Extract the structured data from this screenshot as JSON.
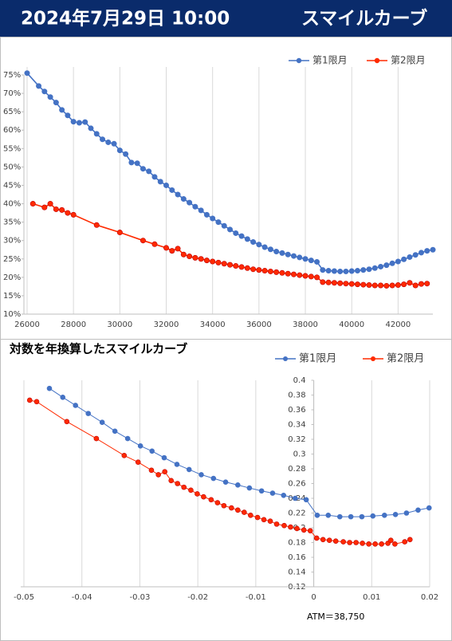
{
  "header": {
    "title": "2024年7月29日 10:00",
    "subtitle": "スマイルカーブ"
  },
  "chart_data": [
    {
      "type": "line",
      "xlim": [
        26000,
        43500
      ],
      "ylim": [
        10,
        75
      ],
      "xticks": [
        26000,
        28000,
        30000,
        32000,
        34000,
        36000,
        38000,
        40000,
        42000
      ],
      "yticks": [
        {
          "value": 10,
          "label": "10%"
        },
        {
          "value": 15,
          "label": "15%"
        },
        {
          "value": 20,
          "label": "20%"
        },
        {
          "value": 25,
          "label": "25%"
        },
        {
          "value": 30,
          "label": "30%"
        },
        {
          "value": 35,
          "label": "35%"
        },
        {
          "value": 40,
          "label": "40%"
        },
        {
          "value": 45,
          "label": "45%"
        },
        {
          "value": 50,
          "label": "50%"
        },
        {
          "value": 55,
          "label": "55%"
        },
        {
          "value": 60,
          "label": "60%"
        },
        {
          "value": 65,
          "label": "65%"
        },
        {
          "value": 70,
          "label": "70%"
        },
        {
          "value": 75,
          "label": "75%"
        }
      ],
      "grid": "x",
      "legend": "top-right",
      "series": [
        {
          "name": "第1限月",
          "color": "#4472c4",
          "x": [
            26000,
            26500,
            26750,
            27000,
            27250,
            27500,
            27750,
            28000,
            28250,
            28500,
            28750,
            29000,
            29250,
            29500,
            29750,
            30000,
            30250,
            30500,
            30750,
            31000,
            31250,
            31500,
            31750,
            32000,
            32250,
            32500,
            32750,
            33000,
            33250,
            33500,
            33750,
            34000,
            34250,
            34500,
            34750,
            35000,
            35250,
            35500,
            35750,
            36000,
            36250,
            36500,
            36750,
            37000,
            37250,
            37500,
            37750,
            38000,
            38250,
            38500,
            38750,
            39000,
            39250,
            39500,
            39750,
            40000,
            40250,
            40500,
            40750,
            41000,
            41250,
            41500,
            41750,
            42000,
            42250,
            42500,
            42750,
            43000,
            43250,
            43500
          ],
          "values": [
            75.5,
            72,
            70.5,
            69,
            67.5,
            65.5,
            64,
            62.3,
            62,
            62.2,
            60.5,
            59,
            57.5,
            56.7,
            56.3,
            54.5,
            53.5,
            51.2,
            51,
            49.5,
            48.8,
            47.3,
            46,
            45,
            43.7,
            42.5,
            41.3,
            40.3,
            39.2,
            38.2,
            37,
            36,
            35,
            34,
            33,
            32,
            31.2,
            30.4,
            29.6,
            28.9,
            28.2,
            27.6,
            27,
            26.6,
            26.2,
            25.8,
            25.4,
            25,
            24.6,
            24.2,
            22,
            21.8,
            21.7,
            21.6,
            21.6,
            21.7,
            21.8,
            22,
            22.2,
            22.5,
            22.9,
            23.3,
            23.8,
            24.3,
            24.9,
            25.5,
            26.1,
            26.7,
            27.2,
            27.5
          ]
        },
        {
          "name": "第2限月",
          "color": "#ff2a00",
          "x": [
            26250,
            26750,
            27000,
            27250,
            27500,
            27750,
            28000,
            29000,
            30000,
            31000,
            31500,
            32000,
            32250,
            32500,
            32750,
            33000,
            33250,
            33500,
            33750,
            34000,
            34250,
            34500,
            34750,
            35000,
            35250,
            35500,
            35750,
            36000,
            36250,
            36500,
            36750,
            37000,
            37250,
            37500,
            37750,
            38000,
            38250,
            38500,
            38750,
            39000,
            39250,
            39500,
            39750,
            40000,
            40250,
            40500,
            40750,
            41000,
            41250,
            41500,
            41750,
            42000,
            42250,
            42500,
            42750,
            43000,
            43250
          ],
          "values": [
            40,
            39,
            40,
            38.5,
            38.3,
            37.5,
            37,
            34.2,
            32.2,
            30,
            29,
            28,
            27.2,
            27.8,
            26.2,
            25.7,
            25.3,
            25,
            24.6,
            24.3,
            24,
            23.7,
            23.4,
            23.1,
            22.8,
            22.5,
            22.2,
            22,
            21.8,
            21.6,
            21.4,
            21.2,
            21,
            20.8,
            20.6,
            20.4,
            20.2,
            20,
            18.7,
            18.6,
            18.5,
            18.4,
            18.3,
            18.2,
            18.1,
            18,
            17.9,
            17.8,
            17.8,
            17.7,
            17.8,
            17.9,
            18.1,
            18.5,
            17.8,
            18.2,
            18.3
          ]
        }
      ]
    },
    {
      "type": "line",
      "title": "対数を年換算したスマイルカーブ",
      "annotation": "ATM＝38,750",
      "xlim": [
        -0.05,
        0.02
      ],
      "ylim": [
        0.12,
        0.4
      ],
      "xticks": [
        -0.05,
        -0.04,
        -0.03,
        -0.02,
        -0.01,
        0,
        0.01,
        0.02
      ],
      "yticks": [
        0.12,
        0.14,
        0.16,
        0.18,
        0.2,
        0.22,
        0.24,
        0.26,
        0.28,
        0.3,
        0.32,
        0.34,
        0.36,
        0.38,
        0.4
      ],
      "grid": "x",
      "legend": "top-right",
      "series": [
        {
          "name": "第1限月",
          "color": "#4472c4",
          "x": [
            -0.0456,
            -0.0433,
            -0.0411,
            -0.0389,
            -0.0365,
            -0.0343,
            -0.0321,
            -0.0299,
            -0.0279,
            -0.0258,
            -0.0236,
            -0.0215,
            -0.0194,
            -0.0173,
            -0.0152,
            -0.0131,
            -0.0111,
            -0.009,
            -0.0071,
            -0.0052,
            -0.0032,
            -0.0013,
            0.0006,
            0.0025,
            0.0045,
            0.0064,
            0.0083,
            0.0102,
            0.0122,
            0.0141,
            0.016,
            0.018,
            0.0199
          ],
          "values": [
            0.389,
            0.377,
            0.366,
            0.355,
            0.343,
            0.331,
            0.321,
            0.311,
            0.304,
            0.295,
            0.286,
            0.279,
            0.272,
            0.267,
            0.262,
            0.258,
            0.254,
            0.25,
            0.247,
            0.244,
            0.24,
            0.238,
            0.217,
            0.217,
            0.215,
            0.215,
            0.215,
            0.216,
            0.217,
            0.218,
            0.22,
            0.224,
            0.227
          ]
        },
        {
          "name": "第2限月",
          "color": "#ff2a00",
          "x": [
            -0.049,
            -0.0478,
            -0.0426,
            -0.0375,
            -0.0327,
            -0.0303,
            -0.028,
            -0.0268,
            -0.0257,
            -0.0246,
            -0.0235,
            -0.0224,
            -0.0212,
            -0.0201,
            -0.019,
            -0.0177,
            -0.0166,
            -0.0155,
            -0.0142,
            -0.0131,
            -0.012,
            -0.0109,
            -0.0097,
            -0.0086,
            -0.0075,
            -0.0064,
            -0.0051,
            -0.004,
            -0.0029,
            -0.0017,
            -0.0006,
            0.0005,
            0.0016,
            0.0027,
            0.0038,
            0.0051,
            0.0062,
            0.0073,
            0.0084,
            0.0095,
            0.0106,
            0.0117,
            0.0128,
            0.0133,
            0.014,
            0.0157,
            0.0166
          ],
          "values": [
            0.373,
            0.371,
            0.344,
            0.321,
            0.298,
            0.289,
            0.278,
            0.272,
            0.276,
            0.264,
            0.26,
            0.255,
            0.251,
            0.246,
            0.242,
            0.238,
            0.234,
            0.23,
            0.227,
            0.224,
            0.221,
            0.217,
            0.214,
            0.211,
            0.209,
            0.205,
            0.203,
            0.201,
            0.199,
            0.197,
            0.196,
            0.186,
            0.184,
            0.183,
            0.182,
            0.181,
            0.18,
            0.18,
            0.179,
            0.178,
            0.178,
            0.178,
            0.179,
            0.183,
            0.178,
            0.181,
            0.184
          ]
        }
      ]
    }
  ]
}
